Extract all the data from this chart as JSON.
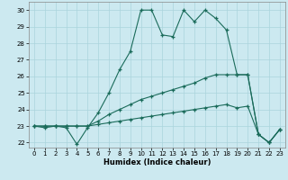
{
  "xlabel": "Humidex (Indice chaleur)",
  "background_color": "#cce9f0",
  "grid_color": "#aad4dc",
  "line_color": "#1a6b5a",
  "x_values": [
    0,
    1,
    2,
    3,
    4,
    5,
    6,
    7,
    8,
    9,
    10,
    11,
    12,
    13,
    14,
    15,
    16,
    17,
    18,
    19,
    20,
    21,
    22,
    23
  ],
  "line1": [
    23,
    22.9,
    23,
    22.9,
    21.9,
    22.9,
    23.8,
    25.0,
    26.4,
    27.5,
    30,
    30,
    28.5,
    28.4,
    30,
    29.3,
    30,
    29.5,
    28.8,
    26.1,
    26.1,
    22.5,
    22.0,
    22.8
  ],
  "line2": [
    23,
    23,
    23,
    23,
    23,
    23,
    23.3,
    23.7,
    24.0,
    24.3,
    24.6,
    24.8,
    25.0,
    25.2,
    25.4,
    25.6,
    25.9,
    26.1,
    26.1,
    26.1,
    26.1,
    22.5,
    22.0,
    22.8
  ],
  "line3": [
    23,
    23,
    23,
    23,
    23,
    23,
    23.1,
    23.2,
    23.3,
    23.4,
    23.5,
    23.6,
    23.7,
    23.8,
    23.9,
    24.0,
    24.1,
    24.2,
    24.3,
    24.1,
    24.2,
    22.5,
    22.0,
    22.8
  ],
  "ylim": [
    21.7,
    30.5
  ],
  "xlim": [
    -0.5,
    23.5
  ],
  "yticks": [
    22,
    23,
    24,
    25,
    26,
    27,
    28,
    29,
    30
  ],
  "xticks": [
    0,
    1,
    2,
    3,
    4,
    5,
    6,
    7,
    8,
    9,
    10,
    11,
    12,
    13,
    14,
    15,
    16,
    17,
    18,
    19,
    20,
    21,
    22,
    23
  ]
}
